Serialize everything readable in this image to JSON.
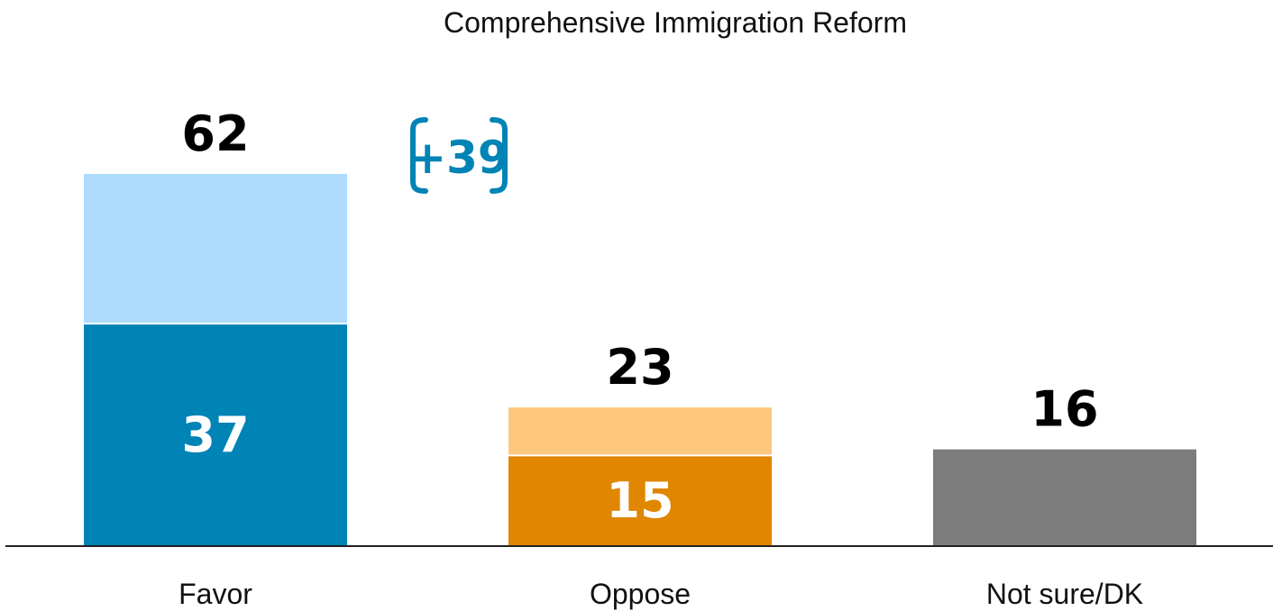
{
  "chart_data": {
    "type": "bar",
    "title": "Comprehensive Immigration Reform",
    "xlabel": "",
    "ylabel": "",
    "ylim": [
      0,
      62
    ],
    "categories": [
      "Favor",
      "Oppose",
      "Not sure/DK"
    ],
    "bars": [
      {
        "category": "Favor",
        "total": 62,
        "inner": 37,
        "total_label": "62",
        "inner_label": "37",
        "color_total": "#aedcfd",
        "color_inner": "#0083b5"
      },
      {
        "category": "Oppose",
        "total": 23,
        "inner": 15,
        "total_label": "23",
        "inner_label": "15",
        "color_total": "#fdc77e",
        "color_inner": "#e08600"
      },
      {
        "category": "Not sure/DK",
        "total": 16,
        "inner": null,
        "total_label": "16",
        "inner_label": "",
        "color_total": "#7c7c7c",
        "color_inner": null
      }
    ],
    "margin_annotation": {
      "text": "+39",
      "color": "#0083b5"
    },
    "axis_color": "#222222"
  }
}
